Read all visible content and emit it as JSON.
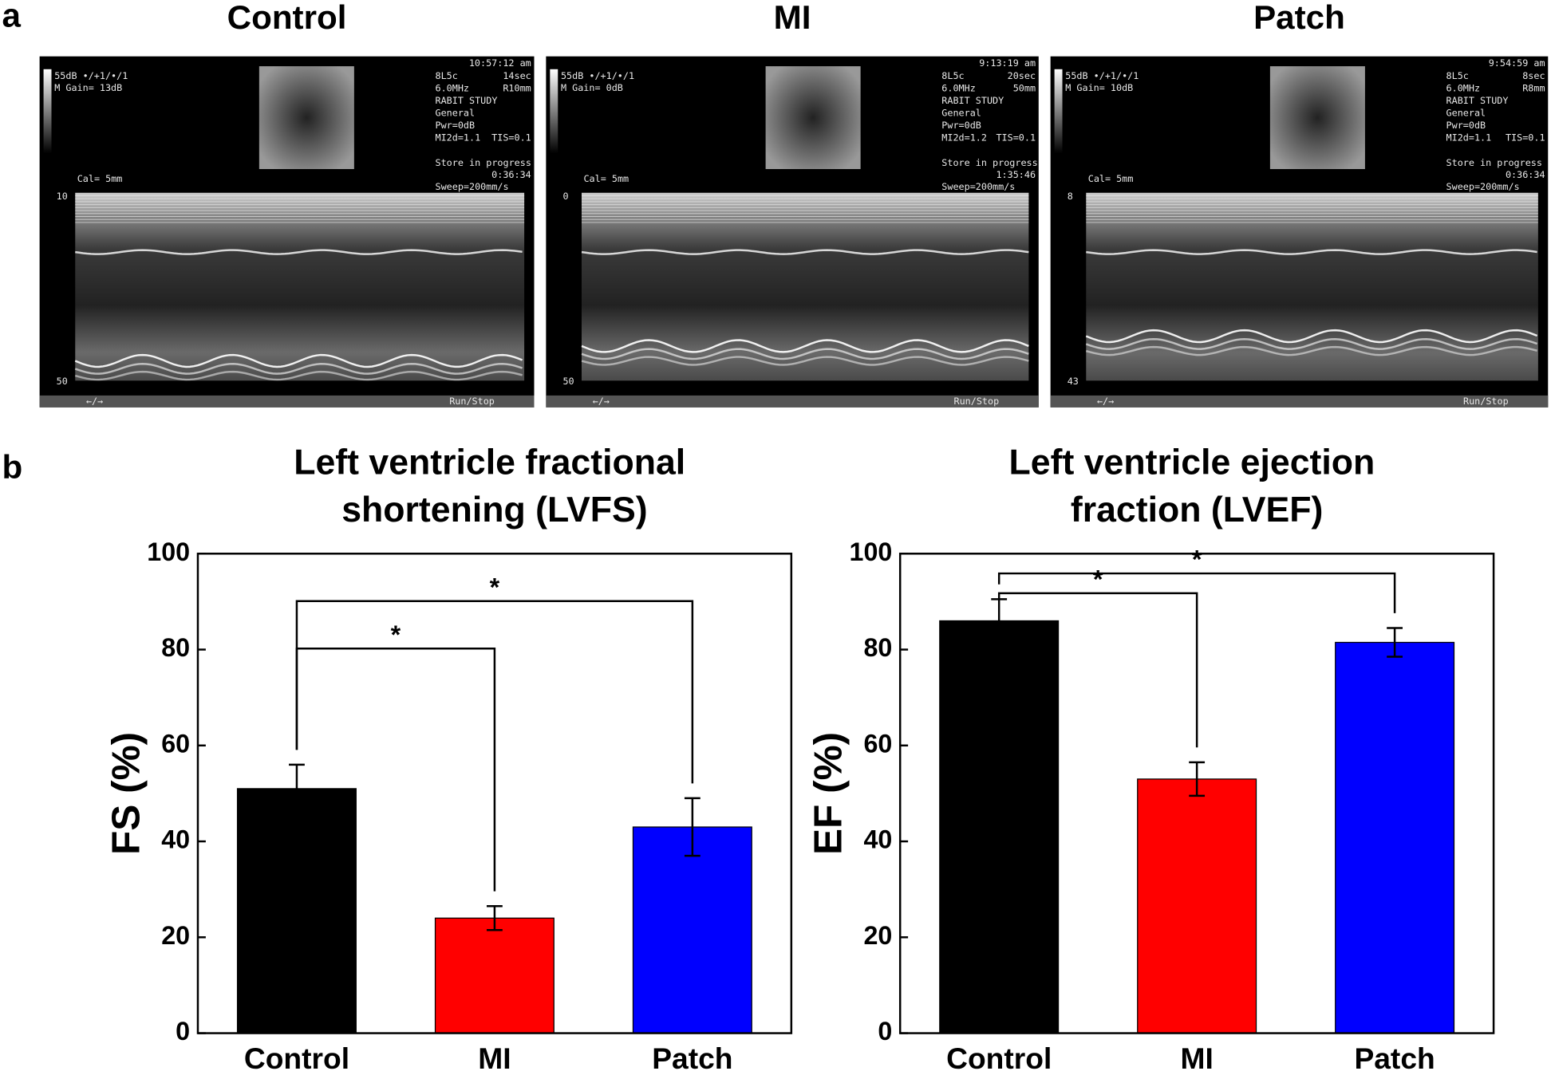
{
  "panel_labels": [
    "a",
    "b"
  ],
  "ultrasound": [
    {
      "title": "Control",
      "gain": "55dB  •/+1/•/1",
      "m_gain": "M Gain= 13dB",
      "time": "10:57:12 am",
      "rows": [
        [
          "8L5c",
          "14sec"
        ],
        [
          "6.0MHz",
          "R10mm"
        ],
        [
          "RABIT STUDY"
        ],
        [
          "General"
        ],
        [
          "Pwr=0dB"
        ],
        [
          "MI2d=1.1",
          "TIS=0.1"
        ]
      ],
      "store": "Store in progress",
      "clock": "0:36:34",
      "sweep": "Sweep=200mm/s",
      "cal": "Cal= 5mm",
      "depth": [
        10,
        50
      ],
      "footer": [
        "←/→",
        "Run/Stop"
      ]
    },
    {
      "title": "MI",
      "gain": "55dB  •/+1/•/1",
      "m_gain": "M Gain=  0dB",
      "time": "9:13:19 am",
      "rows": [
        [
          "8L5c",
          "20sec"
        ],
        [
          "6.0MHz",
          "50mm"
        ],
        [
          "RABIT STUDY"
        ],
        [
          "General"
        ],
        [
          "Pwr=0dB"
        ],
        [
          "MI2d=1.2",
          "TIS=0.1"
        ]
      ],
      "store": "Store in progress",
      "clock": "1:35:46",
      "sweep": "Sweep=200mm/s",
      "cal": "Cal= 5mm",
      "depth": [
        0,
        50
      ],
      "footer": [
        "←/→",
        "Run/Stop"
      ]
    },
    {
      "title": "Patch",
      "gain": "55dB  •/+1/•/1",
      "m_gain": "M Gain= 10dB",
      "time": "9:54:59 am",
      "rows": [
        [
          "8L5c",
          "8sec"
        ],
        [
          "6.0MHz",
          "R8mm"
        ],
        [
          "RABIT STUDY"
        ],
        [
          "General"
        ],
        [
          "Pwr=0dB"
        ],
        [
          "MI2d=1.1",
          "TIS=0.1"
        ]
      ],
      "store": "Store in progress",
      "clock": "0:36:34",
      "sweep": "Sweep=200mm/s",
      "cal": "Cal= 5mm",
      "depth": [
        8,
        43
      ],
      "footer": [
        "←/→",
        "Run/Stop"
      ]
    }
  ],
  "chart_data": [
    {
      "type": "bar",
      "title": "Left ventricle fractional shortening (LVFS)",
      "y_label": "FS (%)",
      "categories": [
        "Control",
        "MI",
        "Patch"
      ],
      "values": [
        51,
        24,
        43
      ],
      "errors": [
        5,
        2.5,
        6
      ],
      "colors": [
        "#000000",
        "#ff0000",
        "#0000ff"
      ],
      "ylim": [
        0,
        100
      ],
      "yticks": [
        0,
        20,
        40,
        60,
        80,
        100
      ],
      "significance": [
        {
          "from": "Control",
          "to": "MI",
          "label": "*"
        },
        {
          "from": "Control",
          "to": "Patch",
          "label": "*"
        }
      ]
    },
    {
      "type": "bar",
      "title": "Left ventricle ejection fraction (LVEF)",
      "y_label": "EF (%)",
      "categories": [
        "Control",
        "MI",
        "Patch"
      ],
      "values": [
        86,
        53,
        81.5
      ],
      "errors": [
        4.5,
        3.5,
        3
      ],
      "colors": [
        "#000000",
        "#ff0000",
        "#0000ff"
      ],
      "ylim": [
        0,
        100
      ],
      "yticks": [
        0,
        20,
        40,
        60,
        80,
        100
      ],
      "significance": [
        {
          "from": "Control",
          "to": "MI",
          "label": "*"
        },
        {
          "from": "Control",
          "to": "Patch",
          "label": "*"
        }
      ]
    }
  ]
}
